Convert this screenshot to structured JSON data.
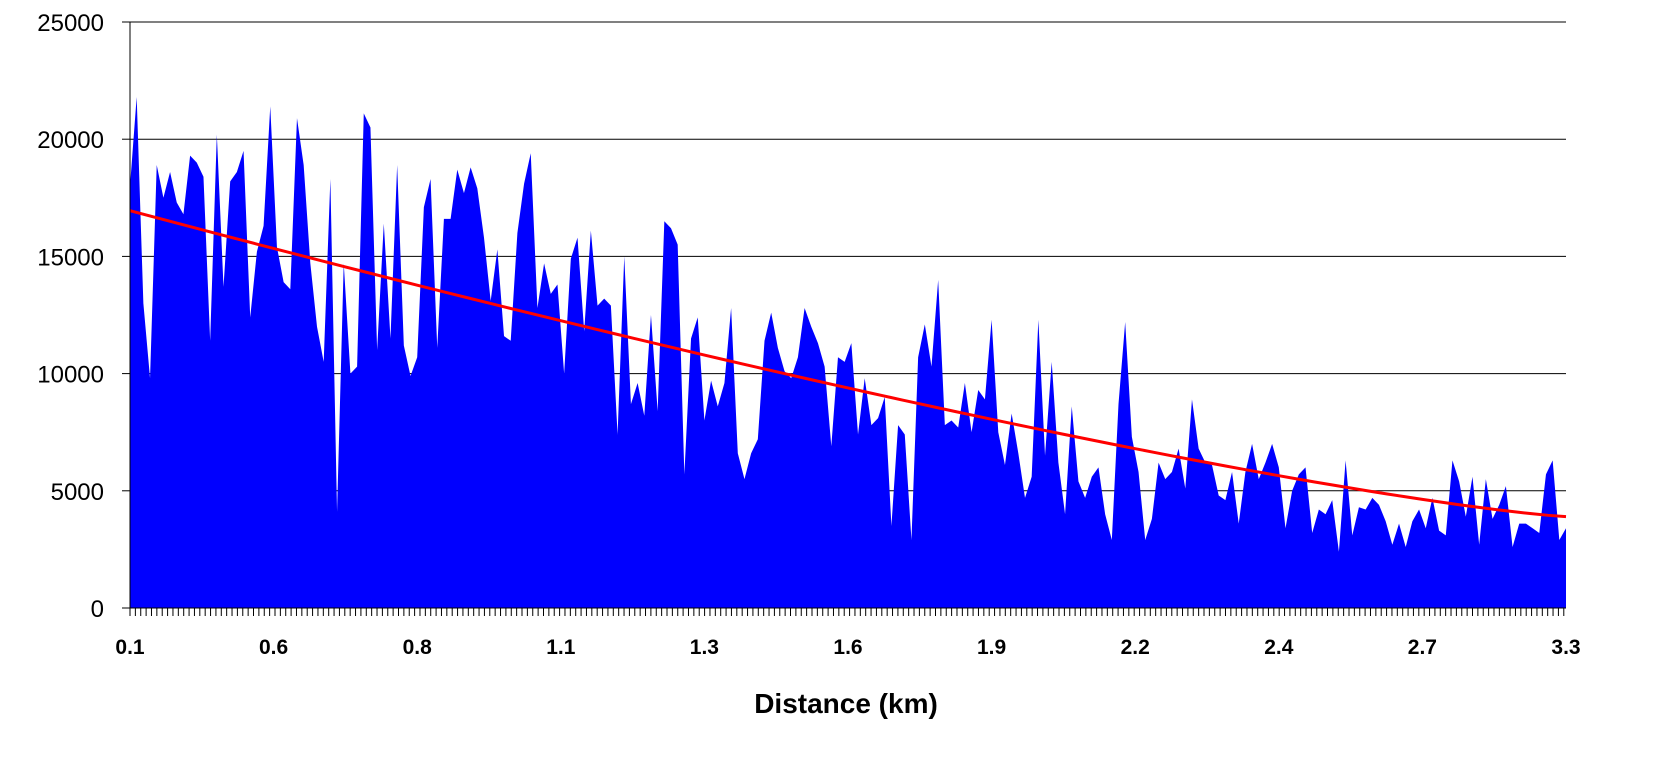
{
  "chart_data": {
    "type": "area",
    "title": "",
    "xlabel": "Distance (km)",
    "ylabel": "",
    "ylim": [
      0,
      25000
    ],
    "yticks": [
      0,
      5000,
      10000,
      15000,
      20000,
      25000
    ],
    "xtick_labels": [
      "0.1",
      "0.6",
      "0.8",
      "1.1",
      "1.3",
      "1.6",
      "1.9",
      "2.2",
      "2.4",
      "2.7",
      "3.3"
    ],
    "grid": true,
    "colors": {
      "area": "#0000ff",
      "trend": "#ff0000",
      "grid": "#000000"
    },
    "series": [
      {
        "type": "area",
        "values": [
          18000,
          21800,
          13000,
          9800,
          18900,
          17500,
          18600,
          17300,
          16800,
          19300,
          19000,
          18400,
          11400,
          20200,
          13700,
          18200,
          18600,
          19500,
          12400,
          15200,
          16300,
          21400,
          15400,
          13900,
          13600,
          20900,
          18900,
          14700,
          12000,
          10500,
          18300,
          4100,
          14700,
          10000,
          10300,
          21100,
          20500,
          11000,
          16400,
          11500,
          18900,
          11200,
          9900,
          10700,
          17100,
          18300,
          11100,
          16600,
          16600,
          18700,
          17700,
          18800,
          17900,
          15800,
          13100,
          15300,
          11600,
          11400,
          16000,
          18100,
          19400,
          12800,
          14700,
          13400,
          13800,
          10000,
          14900,
          15800,
          11800,
          16100,
          12900,
          13200,
          12900,
          7400,
          15000,
          8700,
          9600,
          8200,
          12500,
          8400,
          16500,
          16200,
          15500,
          5700,
          11500,
          12400,
          8000,
          9700,
          8600,
          9600,
          12800,
          6600,
          5500,
          6600,
          7200,
          11400,
          12600,
          11100,
          10100,
          9800,
          10700,
          12800,
          12000,
          11300,
          10300,
          6900,
          10700,
          10500,
          11300,
          7400,
          9800,
          7800,
          8100,
          9000,
          3500,
          7800,
          7400,
          2900,
          10700,
          12100,
          10300,
          14000,
          7800,
          8000,
          7700,
          9600,
          7500,
          9300,
          8900,
          12300,
          7500,
          6100,
          8300,
          6600,
          4700,
          5600,
          12300,
          6500,
          10500,
          6200,
          4000,
          8600,
          5400,
          4700,
          5600,
          6000,
          4000,
          2900,
          8700,
          12200,
          7300,
          5800,
          2900,
          3800,
          6200,
          5500,
          5800,
          6800,
          5100,
          8900,
          6800,
          6200,
          6100,
          4800,
          4600,
          5800,
          3600,
          5800,
          7000,
          5500,
          6200,
          7000,
          6000,
          3400,
          5000,
          5700,
          6000,
          3200,
          4200,
          4000,
          4600,
          2400,
          6300,
          3100,
          4300,
          4200,
          4700,
          4400,
          3700,
          2700,
          3600,
          2600,
          3700,
          4200,
          3400,
          4700,
          3300,
          3100,
          6300,
          5400,
          3900,
          5600,
          2700,
          5500,
          3800,
          4400,
          5200,
          2600,
          3600,
          3600,
          3400,
          3200,
          5700,
          6300,
          2900,
          3400
        ]
      },
      {
        "type": "line",
        "start": 16950,
        "end": 3900
      }
    ]
  }
}
